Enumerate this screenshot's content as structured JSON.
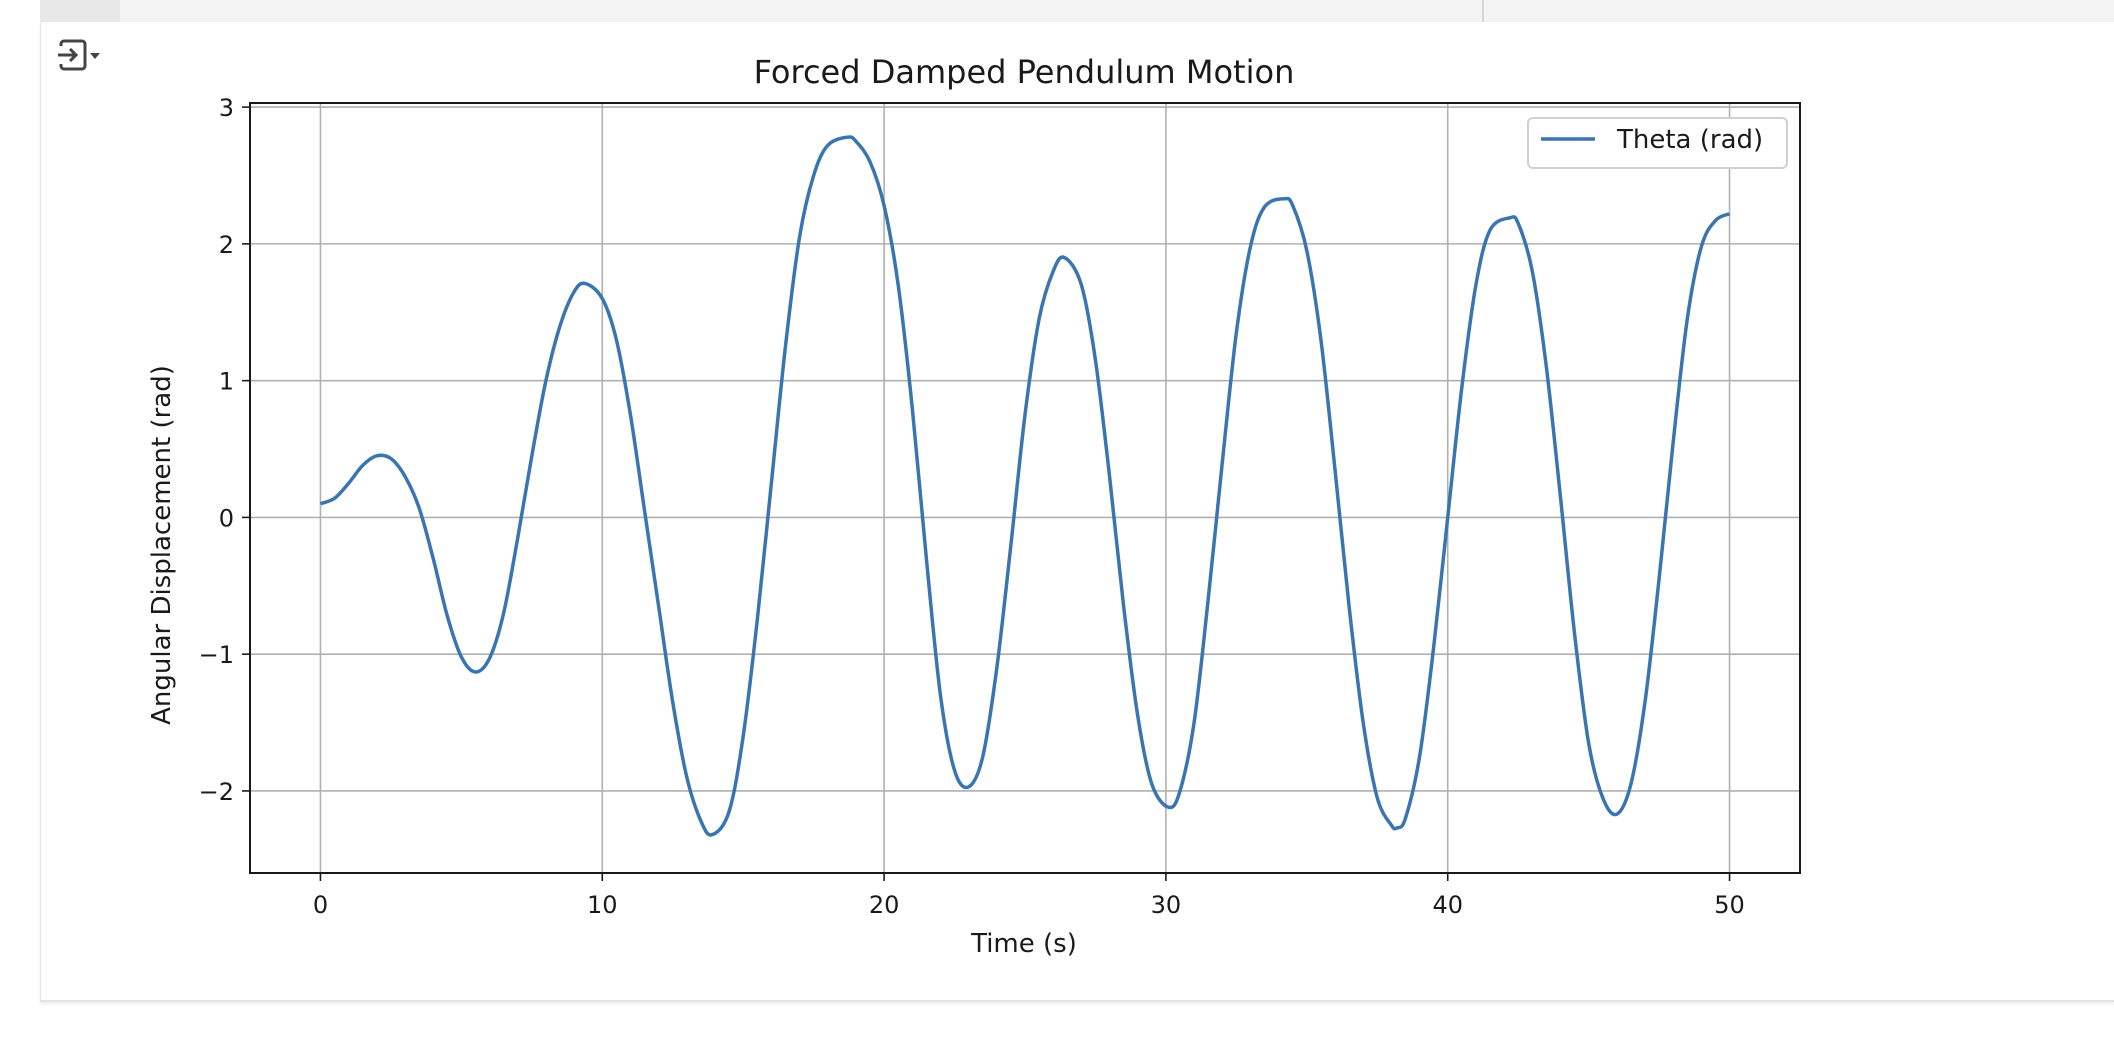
{
  "output_toggle_icon": "output-toggle-icon",
  "chart_data": {
    "type": "line",
    "title": "Forced Damped Pendulum Motion",
    "xlabel": "Time (s)",
    "ylabel": "Angular Displacement (rad)",
    "xlim": [
      -2.5,
      52.5
    ],
    "ylim": [
      -2.6,
      3.03
    ],
    "x_ticks": [
      0,
      10,
      20,
      30,
      40,
      50
    ],
    "x_tick_labels": [
      "0",
      "10",
      "20",
      "30",
      "40",
      "50"
    ],
    "y_ticks": [
      -2,
      -1,
      0,
      1,
      2,
      3
    ],
    "y_tick_labels": [
      "−2",
      "−1",
      "0",
      "1",
      "2",
      "3"
    ],
    "grid": true,
    "legend_position": "top-right",
    "series": [
      {
        "name": "Theta (rad)",
        "color": "#3a75b0",
        "points": [
          [
            0,
            0.1
          ],
          [
            0.5,
            0.14
          ],
          [
            1.0,
            0.25
          ],
          [
            1.5,
            0.38
          ],
          [
            2.0,
            0.45
          ],
          [
            2.5,
            0.43
          ],
          [
            3.0,
            0.3
          ],
          [
            3.5,
            0.07
          ],
          [
            4.0,
            -0.3
          ],
          [
            4.5,
            -0.72
          ],
          [
            5.0,
            -1.02
          ],
          [
            5.5,
            -1.13
          ],
          [
            6.0,
            -1.03
          ],
          [
            6.5,
            -0.7
          ],
          [
            7.0,
            -0.15
          ],
          [
            7.5,
            0.45
          ],
          [
            8.0,
            1.0
          ],
          [
            8.5,
            1.4
          ],
          [
            9.0,
            1.65
          ],
          [
            9.4,
            1.71
          ],
          [
            10.0,
            1.6
          ],
          [
            10.5,
            1.3
          ],
          [
            11.0,
            0.75
          ],
          [
            11.5,
            0.05
          ],
          [
            12.0,
            -0.65
          ],
          [
            12.5,
            -1.35
          ],
          [
            13.0,
            -1.9
          ],
          [
            13.5,
            -2.22
          ],
          [
            13.9,
            -2.32
          ],
          [
            14.5,
            -2.15
          ],
          [
            15.0,
            -1.6
          ],
          [
            15.5,
            -0.75
          ],
          [
            16.0,
            0.25
          ],
          [
            16.5,
            1.25
          ],
          [
            17.0,
            2.05
          ],
          [
            17.5,
            2.5
          ],
          [
            18.0,
            2.72
          ],
          [
            18.7,
            2.78
          ],
          [
            19.0,
            2.75
          ],
          [
            19.5,
            2.6
          ],
          [
            20.0,
            2.28
          ],
          [
            20.5,
            1.7
          ],
          [
            21.0,
            0.8
          ],
          [
            21.5,
            -0.3
          ],
          [
            22.0,
            -1.3
          ],
          [
            22.5,
            -1.85
          ],
          [
            23.0,
            -1.97
          ],
          [
            23.5,
            -1.75
          ],
          [
            24.0,
            -1.1
          ],
          [
            24.5,
            -0.2
          ],
          [
            25.0,
            0.75
          ],
          [
            25.5,
            1.45
          ],
          [
            26.0,
            1.8
          ],
          [
            26.4,
            1.9
          ],
          [
            27.0,
            1.7
          ],
          [
            27.5,
            1.15
          ],
          [
            28.0,
            0.3
          ],
          [
            28.5,
            -0.65
          ],
          [
            29.0,
            -1.45
          ],
          [
            29.5,
            -1.95
          ],
          [
            30.1,
            -2.12
          ],
          [
            30.5,
            -2.0
          ],
          [
            31.0,
            -1.5
          ],
          [
            31.5,
            -0.6
          ],
          [
            32.0,
            0.4
          ],
          [
            32.5,
            1.35
          ],
          [
            33.0,
            1.98
          ],
          [
            33.5,
            2.27
          ],
          [
            34.2,
            2.33
          ],
          [
            34.5,
            2.28
          ],
          [
            35.0,
            1.95
          ],
          [
            35.5,
            1.3
          ],
          [
            36.0,
            0.35
          ],
          [
            36.5,
            -0.65
          ],
          [
            37.0,
            -1.5
          ],
          [
            37.5,
            -2.05
          ],
          [
            38.0,
            -2.25
          ],
          [
            38.2,
            -2.27
          ],
          [
            38.5,
            -2.2
          ],
          [
            39.0,
            -1.75
          ],
          [
            39.5,
            -0.95
          ],
          [
            40.0,
            0.0
          ],
          [
            40.5,
            0.95
          ],
          [
            41.0,
            1.7
          ],
          [
            41.5,
            2.1
          ],
          [
            42.2,
            2.19
          ],
          [
            42.5,
            2.15
          ],
          [
            43.0,
            1.8
          ],
          [
            43.5,
            1.1
          ],
          [
            44.0,
            0.15
          ],
          [
            44.5,
            -0.85
          ],
          [
            45.0,
            -1.65
          ],
          [
            45.5,
            -2.05
          ],
          [
            46.0,
            -2.17
          ],
          [
            46.5,
            -1.95
          ],
          [
            47.0,
            -1.35
          ],
          [
            47.5,
            -0.45
          ],
          [
            48.0,
            0.55
          ],
          [
            48.5,
            1.45
          ],
          [
            49.0,
            1.98
          ],
          [
            49.5,
            2.17
          ],
          [
            50.0,
            2.22
          ]
        ]
      }
    ]
  }
}
